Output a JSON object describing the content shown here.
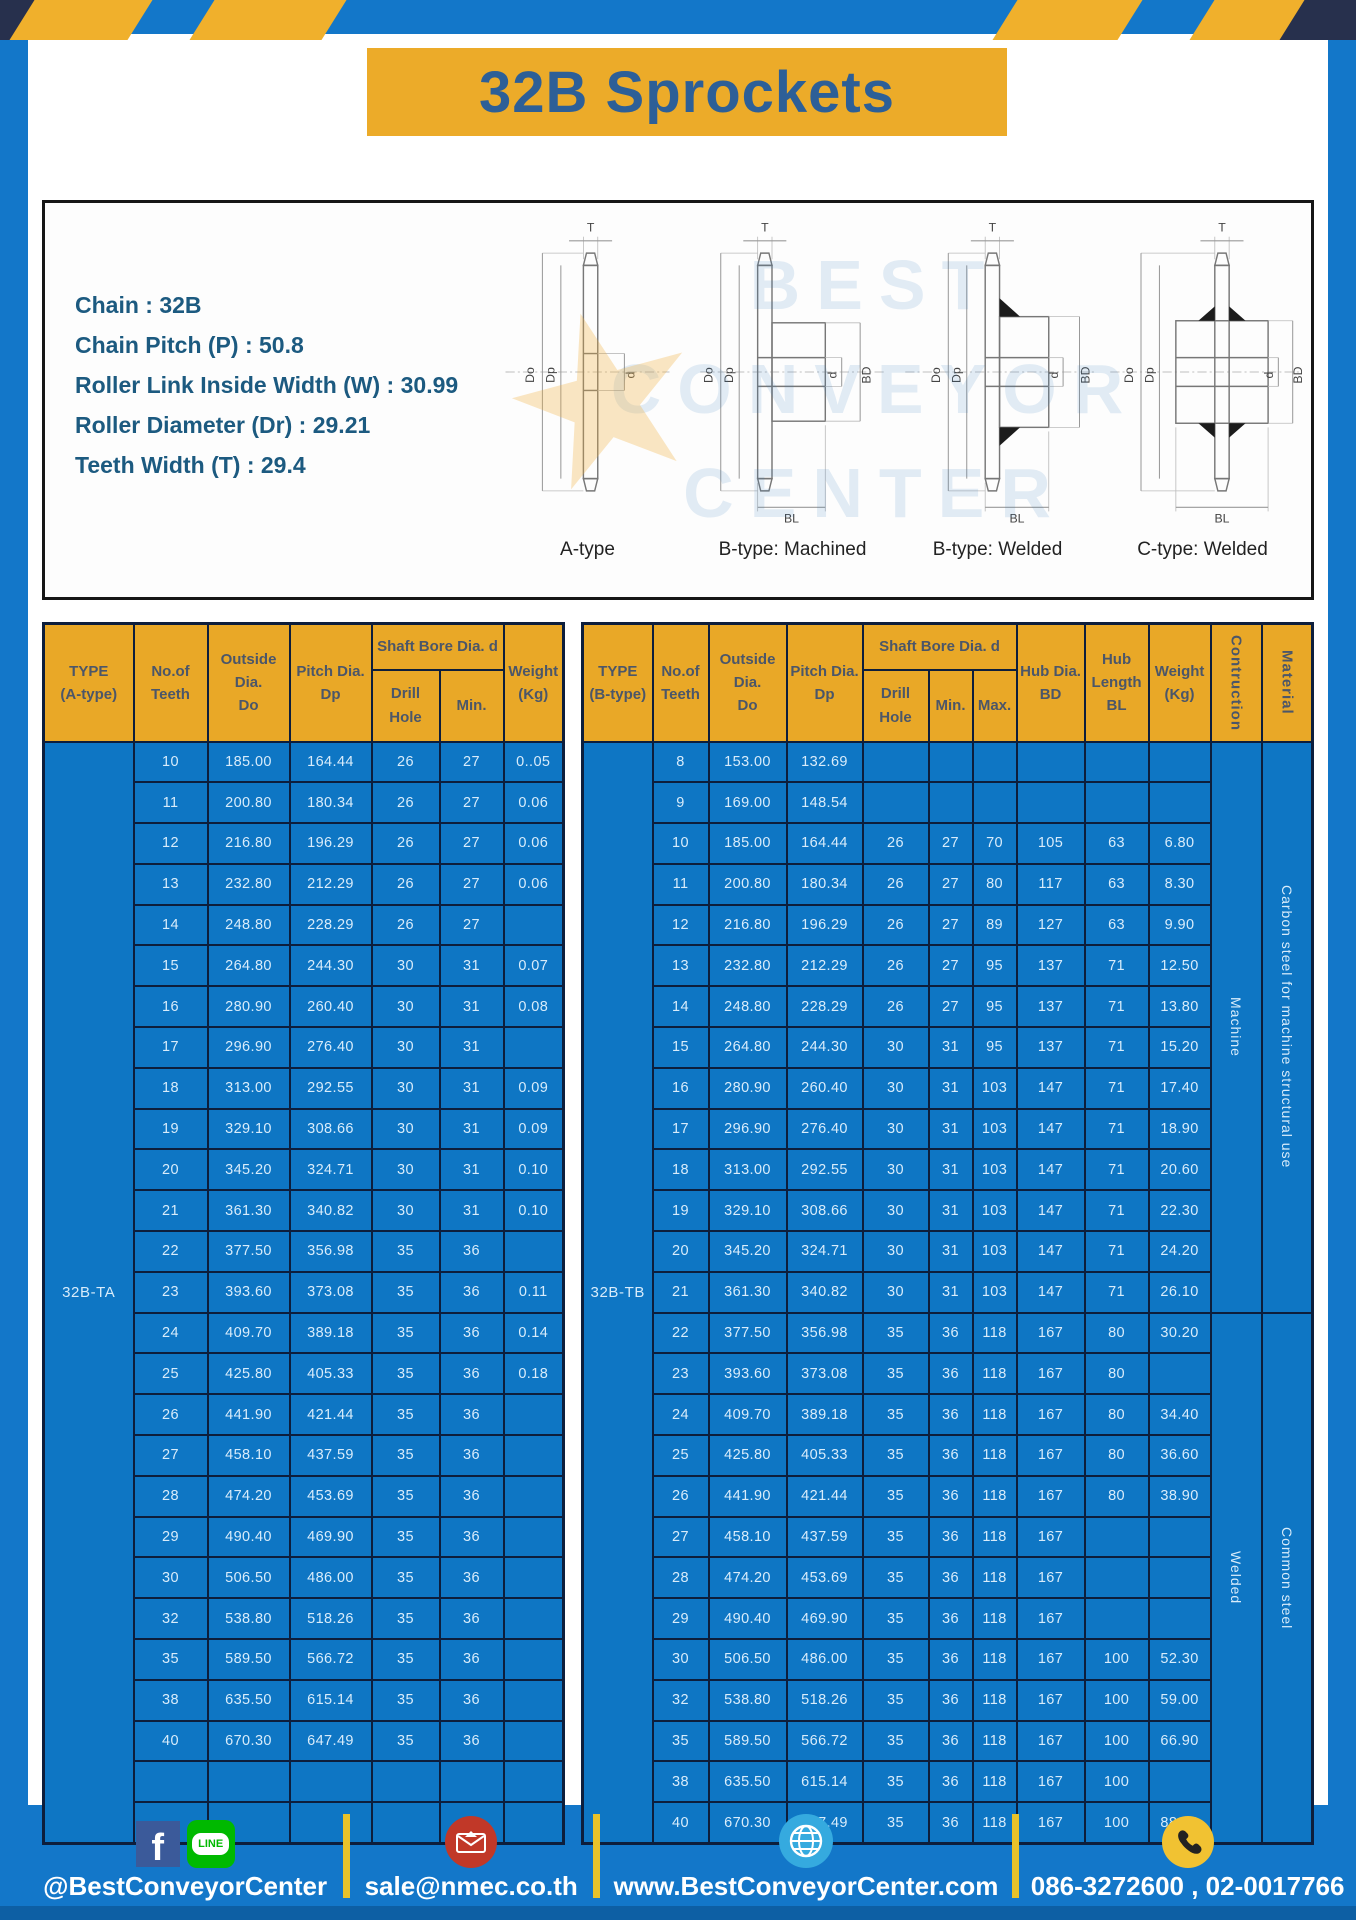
{
  "page": {
    "title": "32B Sprockets"
  },
  "colors": {
    "frame_blue": "#1377c9",
    "cell_blue": "#0e76c4",
    "header_yellow": "#e9a827",
    "banner_yellow": "#ecab29",
    "border_navy": "#0d1e3c",
    "footer_divider_yellow": "#e8c22a",
    "title_text_blue": "#2d5f97",
    "spec_text_blue": "#1c5a80"
  },
  "specs": {
    "lines": [
      "Chain : 32B",
      "Chain Pitch (P) : 50.8",
      "Roller Link Inside Width (W) : 30.99",
      "Roller Diameter (Dr) : 29.21",
      "Teeth Width (T) : 29.4"
    ]
  },
  "diagrams": {
    "labels": [
      "A-type",
      "B-type: Machined",
      "B-type: Welded",
      "C-type: Welded"
    ],
    "dims": {
      "t": "T",
      "do": "Do",
      "dp": "Dp",
      "d": "d",
      "bd": "BD",
      "bl": "BL"
    }
  },
  "watermark": {
    "lines": [
      "BEST",
      "CONVEYOR",
      "CENTER"
    ],
    "star": "★"
  },
  "table_a": {
    "type_label": "32B-TA",
    "headers": {
      "type": "TYPE\n(A-type)",
      "teeth": "No.of\nTeeth",
      "outside": "Outside\nDia.\nDo",
      "pitch": "Pitch Dia.\nDp",
      "shaft": "Shaft Bore Dia. d",
      "drill": "Drill Hole",
      "min": "Min.",
      "weight": "Weight\n(Kg)"
    },
    "rows": [
      [
        "10",
        "185.00",
        "164.44",
        "26",
        "27",
        "0..05"
      ],
      [
        "11",
        "200.80",
        "180.34",
        "26",
        "27",
        "0.06"
      ],
      [
        "12",
        "216.80",
        "196.29",
        "26",
        "27",
        "0.06"
      ],
      [
        "13",
        "232.80",
        "212.29",
        "26",
        "27",
        "0.06"
      ],
      [
        "14",
        "248.80",
        "228.29",
        "26",
        "27",
        ""
      ],
      [
        "15",
        "264.80",
        "244.30",
        "30",
        "31",
        "0.07"
      ],
      [
        "16",
        "280.90",
        "260.40",
        "30",
        "31",
        "0.08"
      ],
      [
        "17",
        "296.90",
        "276.40",
        "30",
        "31",
        ""
      ],
      [
        "18",
        "313.00",
        "292.55",
        "30",
        "31",
        "0.09"
      ],
      [
        "19",
        "329.10",
        "308.66",
        "30",
        "31",
        "0.09"
      ],
      [
        "20",
        "345.20",
        "324.71",
        "30",
        "31",
        "0.10"
      ],
      [
        "21",
        "361.30",
        "340.82",
        "30",
        "31",
        "0.10"
      ],
      [
        "22",
        "377.50",
        "356.98",
        "35",
        "36",
        ""
      ],
      [
        "23",
        "393.60",
        "373.08",
        "35",
        "36",
        "0.11"
      ],
      [
        "24",
        "409.70",
        "389.18",
        "35",
        "36",
        "0.14"
      ],
      [
        "25",
        "425.80",
        "405.33",
        "35",
        "36",
        "0.18"
      ],
      [
        "26",
        "441.90",
        "421.44",
        "35",
        "36",
        ""
      ],
      [
        "27",
        "458.10",
        "437.59",
        "35",
        "36",
        ""
      ],
      [
        "28",
        "474.20",
        "453.69",
        "35",
        "36",
        ""
      ],
      [
        "29",
        "490.40",
        "469.90",
        "35",
        "36",
        ""
      ],
      [
        "30",
        "506.50",
        "486.00",
        "35",
        "36",
        ""
      ],
      [
        "32",
        "538.80",
        "518.26",
        "35",
        "36",
        ""
      ],
      [
        "35",
        "589.50",
        "566.72",
        "35",
        "36",
        ""
      ],
      [
        "38",
        "635.50",
        "615.14",
        "35",
        "36",
        ""
      ],
      [
        "40",
        "670.30",
        "647.49",
        "35",
        "36",
        ""
      ],
      [
        "",
        "",
        "",
        "",
        "",
        ""
      ],
      [
        "",
        "",
        "",
        "",
        "",
        ""
      ]
    ]
  },
  "table_b": {
    "type_label": "32B-TB",
    "headers": {
      "type": "TYPE\n(B-type)",
      "teeth": "No.of\nTeeth",
      "outside": "Outside\nDia.\nDo",
      "pitch": "Pitch Dia.\nDp",
      "shaft": "Shaft Bore Dia. d",
      "drill": "Drill Hole",
      "min": "Min.",
      "max": "Max.",
      "hub_dia": "Hub Dia.\nBD",
      "hub_len": "Hub\nLength\nBL",
      "weight": "Weight\n(Kg)",
      "construction": "Contruction",
      "material": "Material"
    },
    "rows": [
      [
        "8",
        "153.00",
        "132.69",
        "",
        "",
        "",
        "",
        "",
        ""
      ],
      [
        "9",
        "169.00",
        "148.54",
        "",
        "",
        "",
        "",
        "",
        ""
      ],
      [
        "10",
        "185.00",
        "164.44",
        "26",
        "27",
        "70",
        "105",
        "63",
        "6.80"
      ],
      [
        "11",
        "200.80",
        "180.34",
        "26",
        "27",
        "80",
        "117",
        "63",
        "8.30"
      ],
      [
        "12",
        "216.80",
        "196.29",
        "26",
        "27",
        "89",
        "127",
        "63",
        "9.90"
      ],
      [
        "13",
        "232.80",
        "212.29",
        "26",
        "27",
        "95",
        "137",
        "71",
        "12.50"
      ],
      [
        "14",
        "248.80",
        "228.29",
        "26",
        "27",
        "95",
        "137",
        "71",
        "13.80"
      ],
      [
        "15",
        "264.80",
        "244.30",
        "30",
        "31",
        "95",
        "137",
        "71",
        "15.20"
      ],
      [
        "16",
        "280.90",
        "260.40",
        "30",
        "31",
        "103",
        "147",
        "71",
        "17.40"
      ],
      [
        "17",
        "296.90",
        "276.40",
        "30",
        "31",
        "103",
        "147",
        "71",
        "18.90"
      ],
      [
        "18",
        "313.00",
        "292.55",
        "30",
        "31",
        "103",
        "147",
        "71",
        "20.60"
      ],
      [
        "19",
        "329.10",
        "308.66",
        "30",
        "31",
        "103",
        "147",
        "71",
        "22.30"
      ],
      [
        "20",
        "345.20",
        "324.71",
        "30",
        "31",
        "103",
        "147",
        "71",
        "24.20"
      ],
      [
        "21",
        "361.30",
        "340.82",
        "30",
        "31",
        "103",
        "147",
        "71",
        "26.10"
      ],
      [
        "22",
        "377.50",
        "356.98",
        "35",
        "36",
        "118",
        "167",
        "80",
        "30.20"
      ],
      [
        "23",
        "393.60",
        "373.08",
        "35",
        "36",
        "118",
        "167",
        "80",
        ""
      ],
      [
        "24",
        "409.70",
        "389.18",
        "35",
        "36",
        "118",
        "167",
        "80",
        "34.40"
      ],
      [
        "25",
        "425.80",
        "405.33",
        "35",
        "36",
        "118",
        "167",
        "80",
        "36.60"
      ],
      [
        "26",
        "441.90",
        "421.44",
        "35",
        "36",
        "118",
        "167",
        "80",
        "38.90"
      ],
      [
        "27",
        "458.10",
        "437.59",
        "35",
        "36",
        "118",
        "167",
        "",
        ""
      ],
      [
        "28",
        "474.20",
        "453.69",
        "35",
        "36",
        "118",
        "167",
        "",
        ""
      ],
      [
        "29",
        "490.40",
        "469.90",
        "35",
        "36",
        "118",
        "167",
        "",
        ""
      ],
      [
        "30",
        "506.50",
        "486.00",
        "35",
        "36",
        "118",
        "167",
        "100",
        "52.30"
      ],
      [
        "32",
        "538.80",
        "518.26",
        "35",
        "36",
        "118",
        "167",
        "100",
        "59.00"
      ],
      [
        "35",
        "589.50",
        "566.72",
        "35",
        "36",
        "118",
        "167",
        "100",
        "66.90"
      ],
      [
        "38",
        "635.50",
        "615.14",
        "35",
        "36",
        "118",
        "167",
        "100",
        ""
      ],
      [
        "40",
        "670.30",
        "647.49",
        "35",
        "36",
        "118",
        "167",
        "100",
        "88.00"
      ]
    ],
    "span_cols": [
      {
        "name": "construction-cell",
        "groups": [
          {
            "label": "Machine",
            "span": 14
          },
          {
            "label": "Welded",
            "span": 13
          }
        ]
      },
      {
        "name": "material-cell",
        "groups": [
          {
            "label": "Carbon steel for machine structural use",
            "span": 14
          },
          {
            "label": "Common steel",
            "span": 13
          }
        ]
      }
    ]
  },
  "footer": {
    "facebook_glyph": "f",
    "line_label": "LINE",
    "facebook_handle": "@BestConveyorCenter",
    "email": "sale@nmec.co.th",
    "website": "www.BestConveyorCenter.com",
    "phones": "086-3272600 , 02-0017766"
  }
}
